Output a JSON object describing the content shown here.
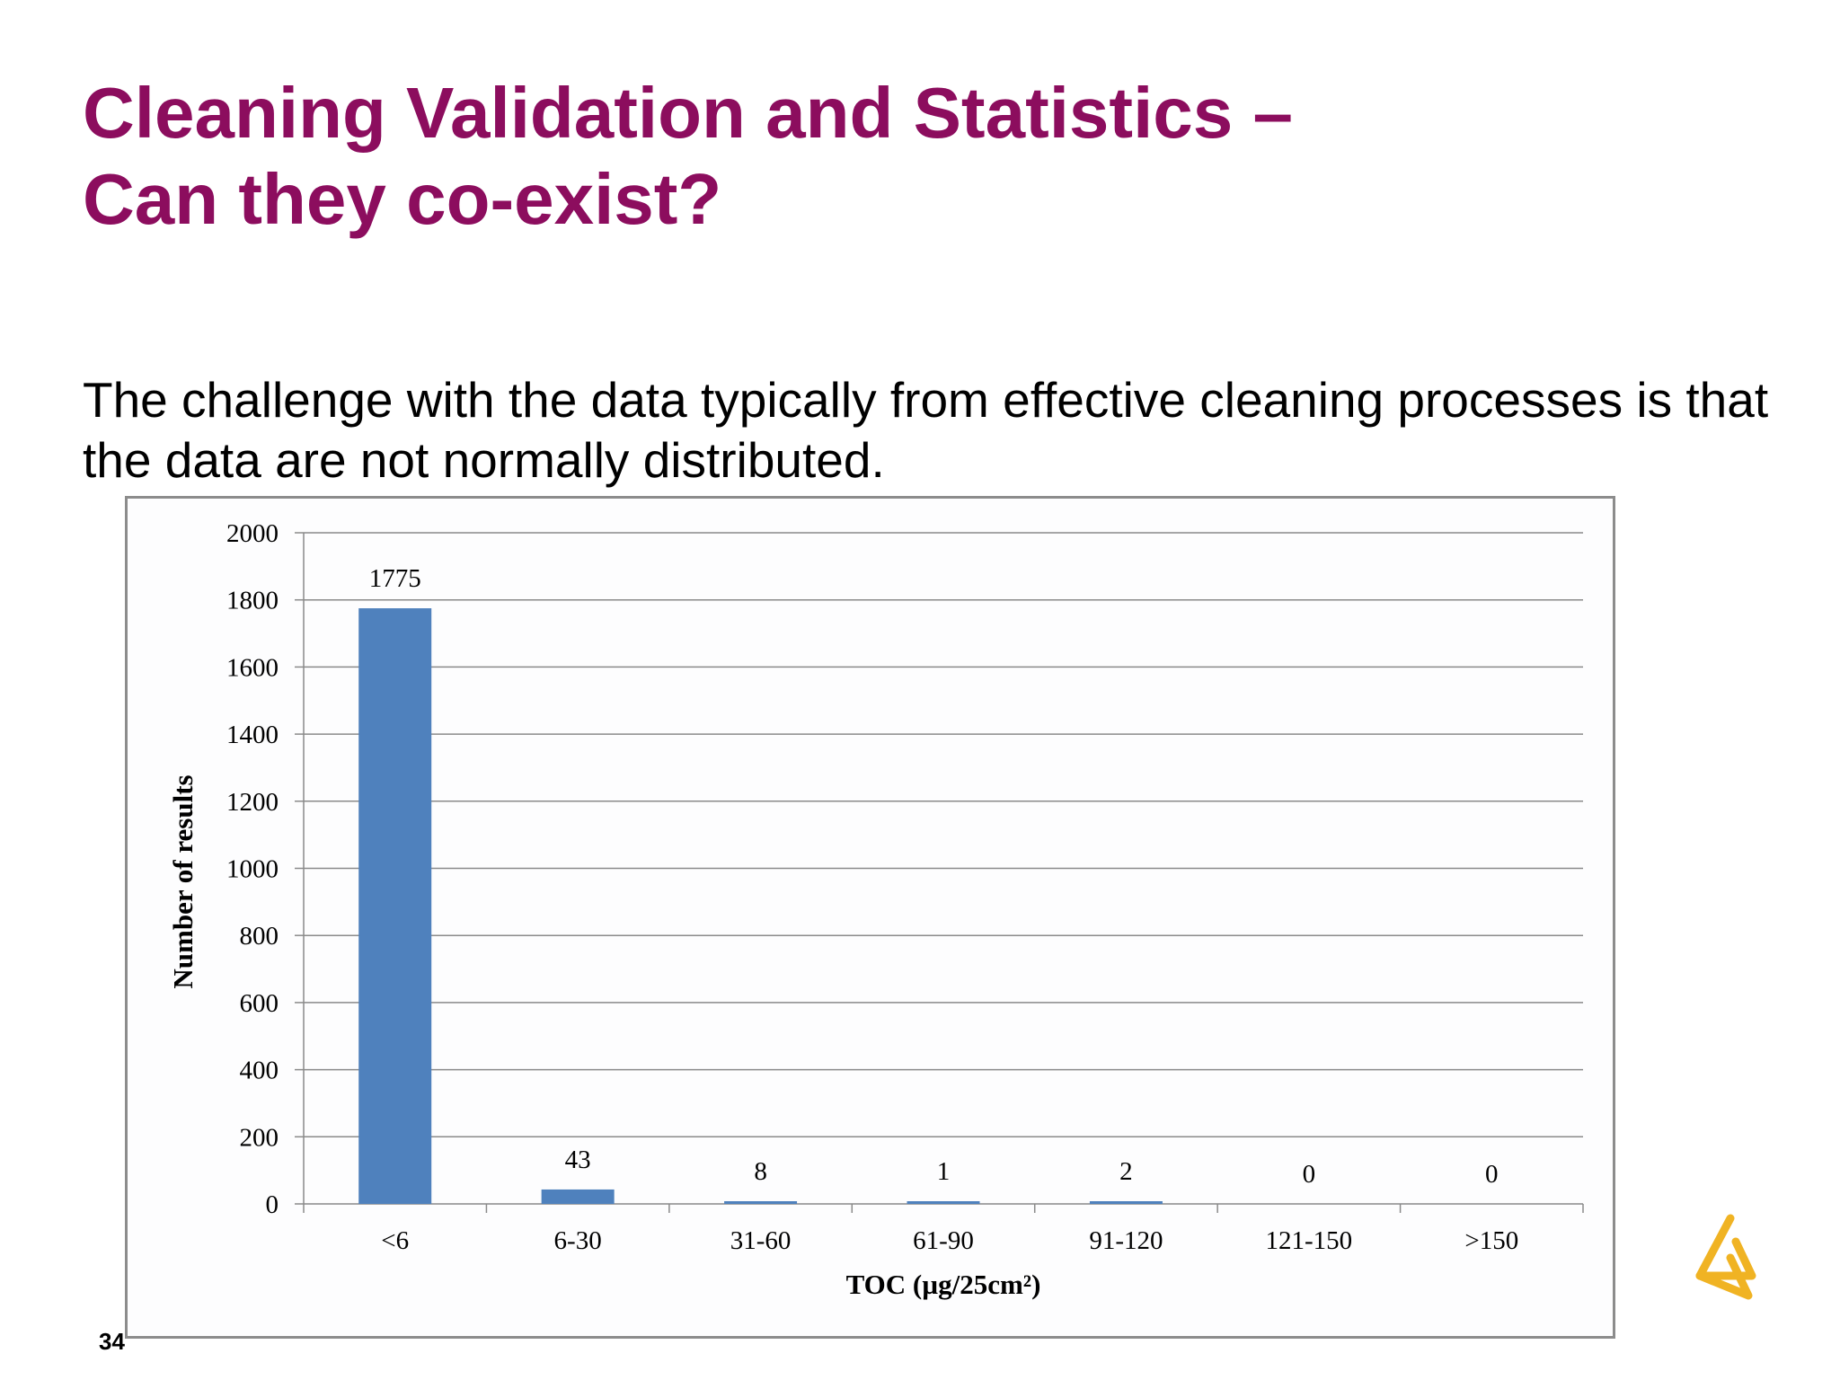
{
  "slide": {
    "title_line1": "Cleaning Validation and Statistics –",
    "title_line2": "Can they co-exist?",
    "body_text": "The challenge with the data typically from effective cleaning processes is that the data are not normally distributed.",
    "page_number": "34",
    "accent_color": "#8c0d5e",
    "logo_icon": "astrazeneca-logo-icon",
    "logo_color": "#f0b323"
  },
  "chart_data": {
    "type": "bar",
    "title": "",
    "xlabel": "TOC (µg/25cm²)",
    "ylabel": "Number of results",
    "categories": [
      "<6",
      "6-30",
      "31-60",
      "61-90",
      "91-120",
      "121-150",
      ">150"
    ],
    "values": [
      1775,
      43,
      8,
      1,
      2,
      0,
      0
    ],
    "data_labels": [
      "1775",
      "43",
      "8",
      "1",
      "2",
      "0",
      "0"
    ],
    "ylim": [
      0,
      2000
    ],
    "yticks": [
      0,
      200,
      400,
      600,
      800,
      1000,
      1200,
      1400,
      1600,
      1800,
      2000
    ],
    "grid": true,
    "legend": "none",
    "bar_color": "#4f81bd"
  }
}
